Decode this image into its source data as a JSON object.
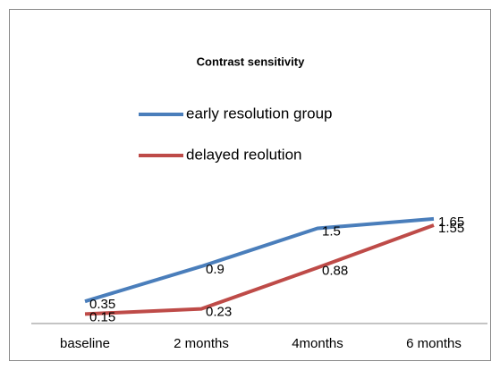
{
  "chart_data": {
    "type": "line",
    "title": "Contrast  sensitivity",
    "categories": [
      "baseline",
      "2 months",
      "4months",
      "6 months"
    ],
    "series": [
      {
        "name": "early resolution group",
        "color": "#4a7ebb",
        "values": [
          0.35,
          0.9,
          1.5,
          1.65
        ]
      },
      {
        "name": "delayed reolution",
        "color": "#be4b48",
        "values": [
          0.15,
          0.23,
          0.88,
          1.55
        ]
      }
    ],
    "ylim": [
      0,
      2
    ]
  }
}
